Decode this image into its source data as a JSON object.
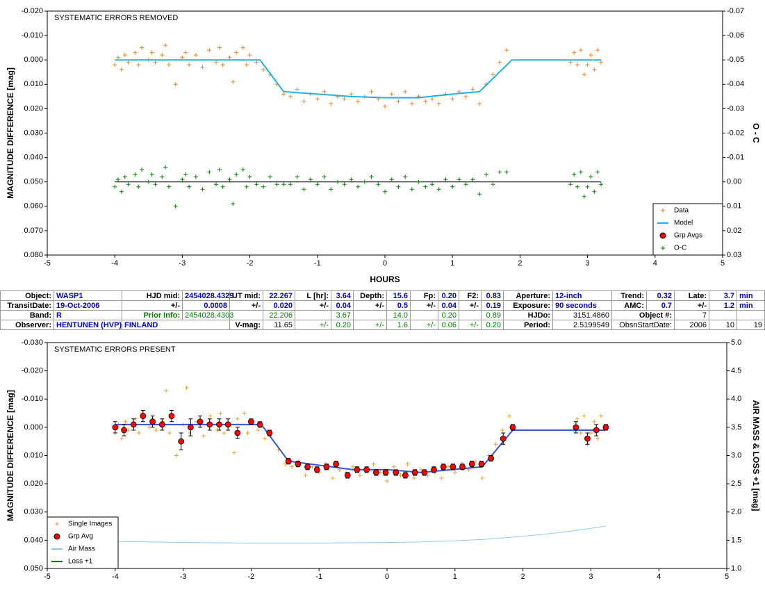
{
  "chart_data": [
    {
      "type": "scatter",
      "title": "SYSTEMATIC ERRORS REMOVED",
      "xlabel": "HOURS",
      "ylabel": "MAGNITUDE DIFFERENCE [mag]",
      "y2label": "O - C",
      "xlim": [
        -5,
        5
      ],
      "xticks": [
        -5,
        -4,
        -3,
        -2,
        -1,
        0,
        1,
        2,
        3,
        4,
        5
      ],
      "ylim": [
        -0.02,
        0.08
      ],
      "y_reversed": true,
      "yticks": [
        {
          "value": -0.02,
          "label": "-0.020"
        },
        {
          "value": -0.01,
          "label": "-0.010"
        },
        {
          "value": 0,
          "label": "0.000"
        },
        {
          "value": 0.01,
          "label": "0.010"
        },
        {
          "value": 0.02,
          "label": "0.020"
        },
        {
          "value": 0.03,
          "label": "0.030"
        },
        {
          "value": 0.04,
          "label": "0.040"
        },
        {
          "value": 0.05,
          "label": "0.050"
        },
        {
          "value": 0.06,
          "label": "0.060"
        },
        {
          "value": 0.07,
          "label": "0.070"
        },
        {
          "value": 0.08,
          "label": "0.080"
        }
      ],
      "y2lim": [
        -0.07,
        0.03
      ],
      "y2_reversed": true,
      "y2ticks": [
        {
          "value": -0.07,
          "label": "-0.07"
        },
        {
          "value": -0.06,
          "label": "-0.06"
        },
        {
          "value": -0.05,
          "label": "-0.05"
        },
        {
          "value": -0.04,
          "label": "-0.04"
        },
        {
          "value": -0.03,
          "label": "-0.03"
        },
        {
          "value": -0.02,
          "label": "-0.02"
        },
        {
          "value": -0.01,
          "label": "-0.01"
        },
        {
          "value": 0,
          "label": "0.00"
        },
        {
          "value": 0.01,
          "label": "0.01"
        },
        {
          "value": 0.02,
          "label": "0.02"
        },
        {
          "value": 0.03,
          "label": "0.03"
        }
      ],
      "y2_hline": 0,
      "legend": "lower right",
      "series": [
        {
          "name": "Data",
          "color": "#e8822a",
          "marker": "+",
          "x": [
            -4.0,
            -3.95,
            -3.9,
            -3.85,
            -3.8,
            -3.7,
            -3.65,
            -3.6,
            -3.5,
            -3.45,
            -3.4,
            -3.3,
            -3.25,
            -3.2,
            -3.1,
            -3.0,
            -2.95,
            -2.9,
            -2.8,
            -2.7,
            -2.6,
            -2.5,
            -2.45,
            -2.4,
            -2.3,
            -2.25,
            -2.2,
            -2.1,
            -2.05,
            -2.0,
            -1.9,
            -1.8,
            -1.7,
            -1.6,
            -1.5,
            -1.4,
            -1.3,
            -1.2,
            -1.1,
            -1.0,
            -0.9,
            -0.8,
            -0.7,
            -0.6,
            -0.5,
            -0.4,
            -0.3,
            -0.2,
            -0.1,
            0.0,
            0.1,
            0.2,
            0.3,
            0.4,
            0.5,
            0.6,
            0.7,
            0.8,
            0.9,
            1.0,
            1.1,
            1.2,
            1.3,
            1.4,
            1.5,
            1.6,
            1.7,
            1.8,
            2.75,
            2.8,
            2.85,
            2.9,
            2.95,
            3.0,
            3.05,
            3.1,
            3.15,
            3.2
          ],
          "values": [
            0.002,
            -0.001,
            0.004,
            -0.002,
            0.001,
            -0.003,
            0.002,
            -0.005,
            0.0,
            -0.003,
            0.001,
            -0.002,
            -0.006,
            0.002,
            0.01,
            -0.001,
            -0.003,
            0.002,
            -0.002,
            0.003,
            -0.004,
            0.001,
            -0.005,
            0.002,
            -0.001,
            0.009,
            -0.003,
            -0.005,
            0.002,
            -0.002,
            0.001,
            0.004,
            0.006,
            0.01,
            0.014,
            0.015,
            0.012,
            0.017,
            0.014,
            0.016,
            0.013,
            0.018,
            0.015,
            0.016,
            0.014,
            0.017,
            0.015,
            0.013,
            0.016,
            0.019,
            0.014,
            0.017,
            0.013,
            0.018,
            0.015,
            0.017,
            0.016,
            0.018,
            0.014,
            0.016,
            0.013,
            0.015,
            0.012,
            0.018,
            0.01,
            0.006,
            0.001,
            -0.004,
            0.001,
            -0.003,
            0.002,
            -0.004,
            0.006,
            0.002,
            -0.002,
            0.004,
            -0.004,
            0.001
          ]
        },
        {
          "name": "Model",
          "color": "#19b3e6",
          "marker": "line",
          "x": [
            -4,
            -1.85,
            -1.5,
            -0.5,
            0,
            0.5,
            1,
            1.4,
            1.88,
            3.2
          ],
          "values": [
            0,
            0,
            0.013,
            0.015,
            0.0155,
            0.0155,
            0.014,
            0.013,
            0,
            0
          ]
        },
        {
          "name": "Grp Avgs",
          "color": "#ff0000",
          "marker": "circle"
        },
        {
          "name": "O-C",
          "color": "#008000",
          "marker": "+",
          "axis": "y2",
          "x": [
            -4.0,
            -3.95,
            -3.9,
            -3.85,
            -3.8,
            -3.7,
            -3.65,
            -3.6,
            -3.5,
            -3.45,
            -3.4,
            -3.3,
            -3.25,
            -3.2,
            -3.1,
            -3.0,
            -2.95,
            -2.9,
            -2.8,
            -2.7,
            -2.6,
            -2.5,
            -2.45,
            -2.4,
            -2.3,
            -2.25,
            -2.2,
            -2.1,
            -2.05,
            -2.0,
            -1.9,
            -1.8,
            -1.7,
            -1.6,
            -1.5,
            -1.4,
            -1.3,
            -1.2,
            -1.1,
            -1.0,
            -0.9,
            -0.8,
            -0.7,
            -0.6,
            -0.5,
            -0.4,
            -0.3,
            -0.2,
            -0.1,
            0.0,
            0.1,
            0.2,
            0.3,
            0.4,
            0.5,
            0.6,
            0.7,
            0.8,
            0.9,
            1.0,
            1.1,
            1.2,
            1.3,
            1.4,
            1.5,
            1.6,
            1.7,
            1.8,
            2.75,
            2.8,
            2.85,
            2.9,
            2.95,
            3.0,
            3.05,
            3.1,
            3.15,
            3.2
          ],
          "values": [
            0.002,
            -0.001,
            0.004,
            -0.002,
            0.001,
            -0.003,
            0.002,
            -0.005,
            0.0,
            -0.003,
            0.001,
            -0.002,
            -0.006,
            0.002,
            0.01,
            -0.001,
            -0.003,
            0.002,
            -0.002,
            0.003,
            -0.004,
            0.001,
            -0.005,
            0.002,
            -0.001,
            0.009,
            -0.003,
            -0.005,
            0.002,
            -0.002,
            0.001,
            0.002,
            -0.002,
            0.001,
            0.001,
            0.001,
            -0.002,
            0.003,
            -0.001,
            0.001,
            -0.002,
            0.003,
            0.0,
            0.001,
            -0.001,
            0.002,
            0.0,
            -0.002,
            0.001,
            0.004,
            -0.001,
            0.002,
            -0.002,
            0.003,
            0.0,
            0.002,
            0.001,
            0.003,
            -0.001,
            0.002,
            -0.001,
            0.001,
            -0.001,
            0.005,
            -0.003,
            0.001,
            -0.004,
            -0.004,
            0.001,
            -0.003,
            0.002,
            -0.004,
            0.006,
            0.002,
            -0.002,
            0.004,
            -0.004,
            0.001
          ]
        }
      ]
    },
    {
      "type": "scatter",
      "title": "SYSTEMATIC ERRORS PRESENT",
      "ylabel": "MAGNITUDE DIFFERENCE [mag]",
      "y2label": "AIR MASS & LOSS +1 [mag]",
      "xlim": [
        -5,
        5
      ],
      "xticks": [
        -5,
        -4,
        -3,
        -2,
        -1,
        0,
        1,
        2,
        3,
        4,
        5
      ],
      "ylim": [
        -0.03,
        0.05
      ],
      "y_reversed": true,
      "yticks": [
        {
          "value": -0.03,
          "label": "-0.030"
        },
        {
          "value": -0.02,
          "label": "-0.020"
        },
        {
          "value": -0.01,
          "label": "-0.010"
        },
        {
          "value": 0,
          "label": "0.000"
        },
        {
          "value": 0.01,
          "label": "0.010"
        },
        {
          "value": 0.02,
          "label": "0.020"
        },
        {
          "value": 0.03,
          "label": "0.030"
        },
        {
          "value": 0.04,
          "label": "0.040"
        },
        {
          "value": 0.05,
          "label": "0.050"
        }
      ],
      "y2lim": [
        1,
        5
      ],
      "y2ticks": [
        {
          "value": 1,
          "label": "1.0"
        },
        {
          "value": 1.5,
          "label": "1.5"
        },
        {
          "value": 2,
          "label": "2.0"
        },
        {
          "value": 2.5,
          "label": "2.5"
        },
        {
          "value": 3,
          "label": "3.0"
        },
        {
          "value": 3.5,
          "label": "3.5"
        },
        {
          "value": 4,
          "label": "4.0"
        },
        {
          "value": 4.5,
          "label": "4.5"
        },
        {
          "value": 5,
          "label": "5.0"
        }
      ],
      "legend": "lower left",
      "series": [
        {
          "name": "Single Images",
          "color": "#f0a030",
          "marker": "+",
          "x": [
            -4.0,
            -3.95,
            -3.9,
            -3.85,
            -3.8,
            -3.7,
            -3.65,
            -3.6,
            -3.5,
            -3.45,
            -3.4,
            -3.3,
            -3.25,
            -3.2,
            -3.1,
            -3.0,
            -2.95,
            -2.9,
            -2.8,
            -2.7,
            -2.6,
            -2.5,
            -2.45,
            -2.4,
            -2.3,
            -2.25,
            -2.2,
            -2.1,
            -2.05,
            -2.0,
            -1.9,
            -1.8,
            -1.7,
            -1.6,
            -1.5,
            -1.4,
            -1.3,
            -1.2,
            -1.1,
            -1.0,
            -0.9,
            -0.8,
            -0.7,
            -0.6,
            -0.5,
            -0.4,
            -0.3,
            -0.2,
            -0.1,
            0.0,
            0.1,
            0.2,
            0.3,
            0.4,
            0.5,
            0.6,
            0.7,
            0.8,
            0.9,
            1.0,
            1.1,
            1.2,
            1.3,
            1.4,
            1.5,
            1.6,
            1.7,
            1.8,
            2.75,
            2.8,
            2.85,
            2.9,
            2.95,
            3.0,
            3.05,
            3.1,
            3.15,
            3.2
          ],
          "values": [
            0.002,
            -0.001,
            0.004,
            -0.002,
            0.001,
            -0.003,
            0.002,
            -0.005,
            0.0,
            -0.003,
            0.001,
            -0.002,
            -0.013,
            0.002,
            0.01,
            -0.001,
            -0.014,
            0.002,
            -0.002,
            0.003,
            -0.004,
            0.001,
            -0.005,
            0.002,
            -0.001,
            0.009,
            -0.003,
            -0.005,
            0.002,
            -0.002,
            0.001,
            0.004,
            0.002,
            0.008,
            0.013,
            0.014,
            0.012,
            0.017,
            0.014,
            0.016,
            0.013,
            0.018,
            0.015,
            0.016,
            0.014,
            0.017,
            0.015,
            0.013,
            0.016,
            0.019,
            0.014,
            0.017,
            0.013,
            0.018,
            0.015,
            0.017,
            0.016,
            0.018,
            0.014,
            0.016,
            0.013,
            0.015,
            0.012,
            0.018,
            0.01,
            0.006,
            0.001,
            -0.004,
            0.001,
            -0.003,
            0.002,
            -0.004,
            0.006,
            0.002,
            -0.002,
            0.004,
            -0.004,
            0.001
          ]
        },
        {
          "color": "#3355dd",
          "marker": "line",
          "x": [
            -4,
            -1.85,
            -1.45,
            -0.5,
            0,
            0.5,
            1.4,
            1.85,
            3.2
          ],
          "values": [
            -0.001,
            -0.001,
            0.012,
            0.015,
            0.015,
            0.016,
            0.014,
            0.001,
            0.001
          ]
        },
        {
          "name": "Grp Avg",
          "color": "#ff0000",
          "marker": "circle",
          "x": [
            -4.0,
            -3.87,
            -3.73,
            -3.59,
            -3.45,
            -3.31,
            -3.17,
            -3.03,
            -2.89,
            -2.75,
            -2.61,
            -2.47,
            -2.34,
            -2.2,
            -2.0,
            -1.87,
            -1.73,
            -1.45,
            -1.31,
            -1.17,
            -1.03,
            -0.89,
            -0.75,
            -0.58,
            -0.44,
            -0.3,
            -0.16,
            -0.02,
            0.13,
            0.27,
            0.41,
            0.55,
            0.69,
            0.83,
            0.97,
            1.11,
            1.25,
            1.39,
            1.53,
            1.71,
            1.85,
            2.78,
            2.95,
            3.08,
            3.22
          ],
          "values": [
            0.0,
            0.001,
            -0.001,
            -0.004,
            -0.002,
            -0.001,
            -0.004,
            0.005,
            0.0,
            -0.002,
            -0.001,
            -0.001,
            -0.001,
            0.002,
            -0.002,
            -0.001,
            0.002,
            0.012,
            0.013,
            0.014,
            0.015,
            0.014,
            0.013,
            0.017,
            0.015,
            0.015,
            0.016,
            0.016,
            0.016,
            0.017,
            0.016,
            0.016,
            0.015,
            0.014,
            0.014,
            0.014,
            0.013,
            0.013,
            0.011,
            0.004,
            0.0,
            0.0,
            0.004,
            0.001,
            0.0
          ],
          "errors": [
            0.002,
            0.002,
            0.002,
            0.002,
            0.002,
            0.002,
            0.002,
            0.003,
            0.003,
            0.002,
            0.002,
            0.002,
            0.002,
            0.002,
            0.001,
            0.001,
            0.001,
            0.001,
            0.001,
            0.001,
            0.001,
            0.001,
            0.001,
            0.001,
            0.001,
            0.001,
            0.001,
            0.001,
            0.001,
            0.001,
            0.001,
            0.001,
            0.001,
            0.001,
            0.001,
            0.001,
            0.001,
            0.001,
            0.001,
            0.002,
            0.001,
            0.002,
            0.002,
            0.002,
            0.001
          ]
        },
        {
          "name": "Air Mass",
          "color": "#8cc6ee",
          "marker": "line",
          "axis": "y2",
          "x": [
            -4,
            -3,
            -2,
            -1,
            0,
            0.5,
            1,
            1.5,
            2,
            2.5,
            3,
            3.22
          ],
          "values": [
            1.48,
            1.46,
            1.45,
            1.45,
            1.46,
            1.47,
            1.49,
            1.52,
            1.57,
            1.63,
            1.71,
            1.75
          ]
        },
        {
          "name": "Loss +1",
          "color": "#008000",
          "marker": "line"
        }
      ]
    }
  ],
  "table": {
    "rows": [
      [
        "Object:",
        "WASP1",
        "HJD mid:",
        "2454028.4329",
        "UT mid:",
        "22.267",
        "L [hr]:",
        "3.64",
        "Depth:",
        "15.6",
        "Fp:",
        "0.20",
        "F2:",
        "0.83",
        "Aperture:",
        "12-inch",
        "Trend:",
        "0.32",
        "Late:",
        "3.7",
        "min"
      ],
      [
        "TransitDate:",
        "19-Oct-2006",
        "+/-",
        "0.0008",
        "+/-",
        "0.020",
        "+/-",
        "0.04",
        "+/-",
        "0.5",
        "+/-",
        "0.04",
        "+/-",
        "0.19",
        "Exposure:",
        "90 seconds",
        "AMC:",
        "0.7",
        "+/-",
        "1.2",
        "min"
      ],
      [
        "Band:",
        "R",
        "Prior Info:",
        "2454028.4303",
        "22.206",
        "3.67",
        "14.0",
        "0.20",
        "0.89",
        "HJDo:",
        "3151.4860",
        "Object #:",
        "7"
      ],
      [
        "Observer:",
        "HENTUNEN (HVP)",
        "FINLAND",
        "V-mag:",
        "11.65",
        "+/-",
        "0.20",
        "+/-",
        "1.6",
        "+/-",
        "0.06",
        "+/-",
        "0.20",
        "Period:",
        "2.5199549",
        "ObsnStartDate:",
        "2006",
        "10",
        "19"
      ]
    ]
  }
}
